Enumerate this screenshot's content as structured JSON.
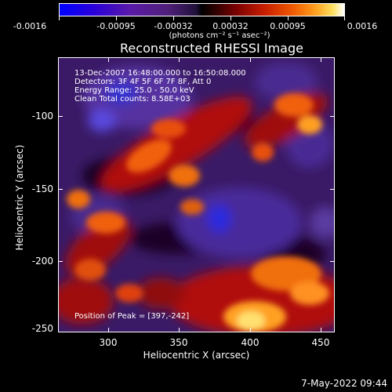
{
  "colorbar": {
    "ticks": [
      "-0.0016",
      "-0.00095",
      "-0.00032",
      "0.00032",
      "0.00095",
      "0.0016"
    ],
    "units": "(photons cm⁻² s⁻¹ asec⁻²)"
  },
  "title": "Reconstructed RHESSI Image",
  "info": {
    "line1": "13-Dec-2007 16:48:00.000 to 16:50:08.000",
    "line2": "Detectors: 3F 4F 5F 6F 7F 8F, Att 0",
    "line3": "Energy Range: 25.0 - 50.0 keV",
    "line4": "Clean     Total counts: 8.58E+03",
    "peak": "Position of Peak = [397,-242]"
  },
  "axes": {
    "xlabel": "Heliocentric X (arcsec)",
    "ylabel": "Heliocentric Y (arcsec)",
    "xticks": [
      "300",
      "350",
      "400",
      "450"
    ],
    "yticks": [
      "-100",
      "-150",
      "-200",
      "-250"
    ]
  },
  "timestamp": "7-May-2022 09:44"
}
